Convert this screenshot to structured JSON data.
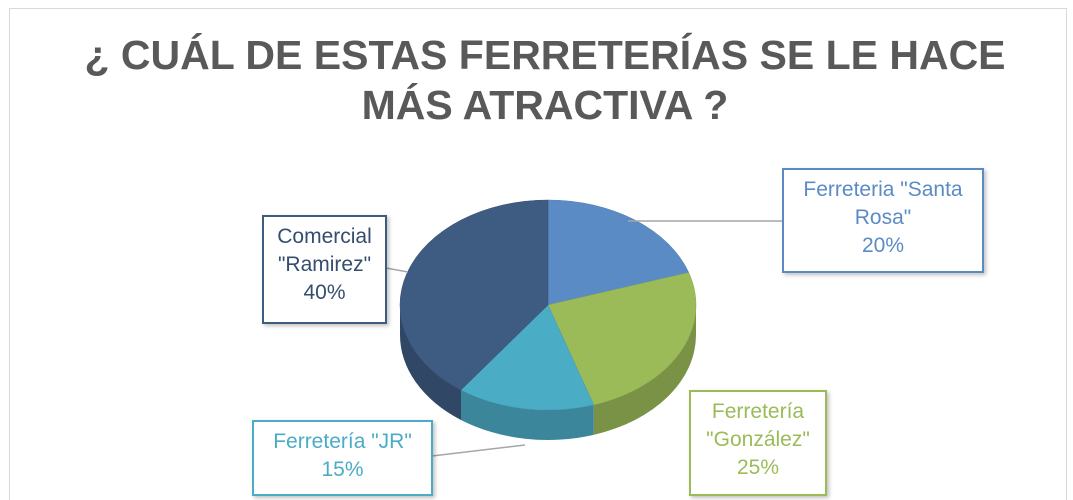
{
  "chart_data": {
    "type": "pie",
    "title": "¿ CUÁL DE ESTAS FERRETERÍAS SE LE HACE MÁS ATRACTIVA ?",
    "categories": [
      "Ferreteria \"Santa Rosa\"",
      "Ferretería \"González\"",
      "Ferretería \"JR\"",
      "Comercial \"Ramirez\""
    ],
    "values": [
      20,
      25,
      15,
      40
    ],
    "value_labels": [
      "20%",
      "25%",
      "15%",
      "40%"
    ],
    "colors": [
      "#5b8bc5",
      "#9bbb59",
      "#4bacc6",
      "#3e5b82"
    ]
  }
}
